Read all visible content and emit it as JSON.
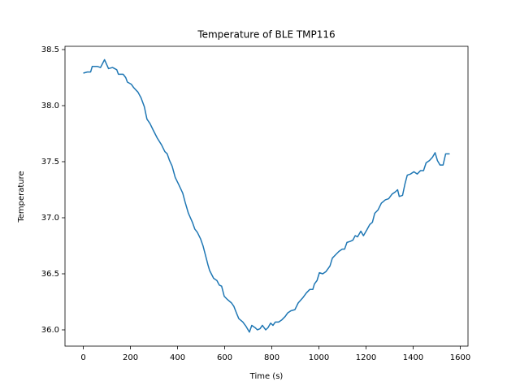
{
  "chart_data": {
    "type": "line",
    "title": "Temperature of BLE TMP116",
    "xlabel": "Time (s)",
    "ylabel": "Temperature",
    "color": "#1f77b4",
    "x": [
      0,
      17,
      31,
      38,
      59,
      73,
      90,
      107,
      124,
      142,
      149,
      169,
      180,
      187,
      204,
      214,
      232,
      245,
      259,
      270,
      283,
      297,
      314,
      332,
      346,
      356,
      366,
      377,
      390,
      404,
      422,
      432,
      446,
      463,
      473,
      484,
      498,
      508,
      518,
      529,
      536,
      553,
      567,
      577,
      587,
      598,
      612,
      629,
      639,
      650,
      660,
      677,
      691,
      705,
      715,
      729,
      739,
      750,
      760,
      774,
      784,
      795,
      805,
      815,
      829,
      843,
      857,
      867,
      881,
      898,
      912,
      933,
      947,
      961,
      974,
      981,
      992,
      1002,
      1016,
      1030,
      1047,
      1057,
      1071,
      1085,
      1099,
      1109,
      1119,
      1134,
      1144,
      1154,
      1164,
      1178,
      1189,
      1203,
      1216,
      1227,
      1237,
      1251,
      1265,
      1282,
      1296,
      1310,
      1324,
      1334,
      1341,
      1355,
      1365,
      1375,
      1389,
      1403,
      1417,
      1431,
      1444,
      1455,
      1469,
      1482,
      1493,
      1503,
      1514,
      1527,
      1538,
      1555
    ],
    "values": [
      38.29,
      38.3,
      38.3,
      38.35,
      38.35,
      38.34,
      38.41,
      38.33,
      38.34,
      38.32,
      38.28,
      38.28,
      38.25,
      38.21,
      38.19,
      38.16,
      38.12,
      38.07,
      37.99,
      37.88,
      37.84,
      37.78,
      37.71,
      37.65,
      37.59,
      37.57,
      37.51,
      37.46,
      37.36,
      37.3,
      37.22,
      37.14,
      37.04,
      36.96,
      36.9,
      36.87,
      36.81,
      36.75,
      36.67,
      36.58,
      36.53,
      36.46,
      36.44,
      36.4,
      36.39,
      36.3,
      36.27,
      36.24,
      36.21,
      36.15,
      36.1,
      36.07,
      36.03,
      35.98,
      36.04,
      36.02,
      36.0,
      36.01,
      36.04,
      36.0,
      36.02,
      36.06,
      36.04,
      36.07,
      36.07,
      36.09,
      36.12,
      36.15,
      36.17,
      36.18,
      36.24,
      36.29,
      36.33,
      36.36,
      36.36,
      36.41,
      36.44,
      36.51,
      36.5,
      36.52,
      36.57,
      36.64,
      36.67,
      36.7,
      36.72,
      36.72,
      36.78,
      36.79,
      36.8,
      36.84,
      36.83,
      36.88,
      36.84,
      36.89,
      36.94,
      36.96,
      37.04,
      37.07,
      37.13,
      37.16,
      37.17,
      37.21,
      37.23,
      37.25,
      37.19,
      37.2,
      37.3,
      37.38,
      37.39,
      37.41,
      37.39,
      37.42,
      37.42,
      37.49,
      37.51,
      37.54,
      37.58,
      37.51,
      37.47,
      37.47,
      37.57,
      37.57
    ],
    "xlim": [
      -77.75,
      1632.75
    ],
    "xticks": [
      0,
      200,
      400,
      600,
      800,
      1000,
      1200,
      1400,
      1600
    ],
    "ylim": [
      35.855,
      38.529
    ],
    "yticks": [
      {
        "value": 36,
        "label": "36.0"
      },
      36.5,
      {
        "value": 37,
        "label": "37.0"
      },
      37.5,
      {
        "value": 38,
        "label": "38.0"
      },
      38.5
    ]
  }
}
